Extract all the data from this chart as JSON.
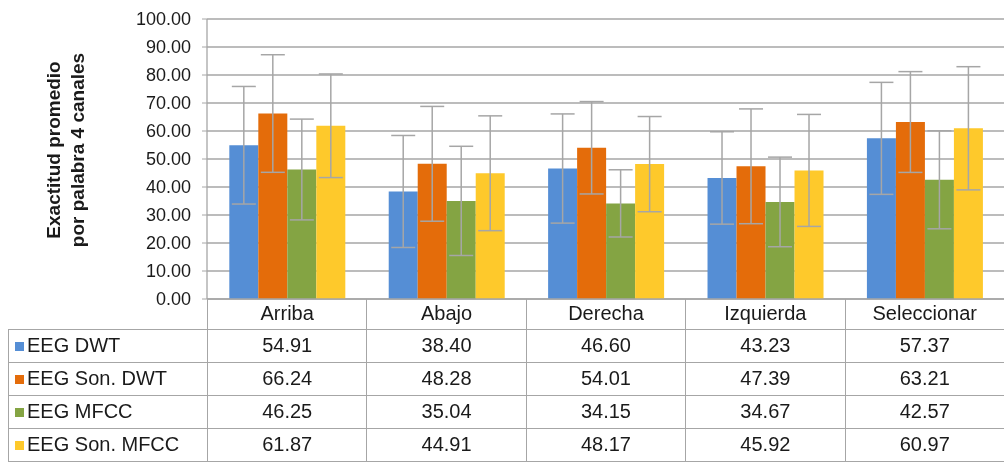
{
  "chart_data": {
    "type": "bar",
    "ylabel": "Exactitud promedio\npor palabra 4 canales",
    "categories": [
      "Arriba",
      "Abajo",
      "Derecha",
      "Izquierda",
      "Seleccionar"
    ],
    "series": [
      {
        "name": "EEG DWT",
        "color": "#558ed5",
        "values": [
          54.91,
          38.4,
          46.6,
          43.23,
          57.37
        ],
        "value_labels": [
          "54.91",
          "38.40",
          "46.60",
          "43.23",
          "57.37"
        ],
        "errors": [
          21,
          20,
          19.5,
          16.5,
          20
        ]
      },
      {
        "name": "EEG Son. DWT",
        "color": "#e46c0a",
        "values": [
          66.24,
          48.28,
          54.01,
          47.39,
          63.21
        ],
        "value_labels": [
          "66.24",
          "48.28",
          "54.01",
          "47.39",
          "63.21"
        ],
        "errors": [
          21,
          20.5,
          16.5,
          20.5,
          18
        ]
      },
      {
        "name": "EEG MFCC",
        "color": "#84a443",
        "values": [
          46.25,
          35.04,
          34.15,
          34.67,
          42.57
        ],
        "value_labels": [
          "46.25",
          "35.04",
          "34.15",
          "34.67",
          "42.57"
        ],
        "errors": [
          18,
          19.5,
          12,
          16,
          17.5
        ]
      },
      {
        "name": "EEG Son. MFCC",
        "color": "#fec92b",
        "values": [
          61.87,
          44.91,
          48.17,
          45.92,
          60.97
        ],
        "value_labels": [
          "61.87",
          "44.91",
          "48.17",
          "45.92",
          "60.97"
        ],
        "errors": [
          18.5,
          20.5,
          17,
          20,
          22
        ]
      }
    ],
    "ylim": [
      0,
      100
    ],
    "yticks": [
      {
        "value": 0,
        "label": "0.00"
      },
      {
        "value": 10,
        "label": "10.00"
      },
      {
        "value": 20,
        "label": "20.00"
      },
      {
        "value": 30,
        "label": "30.00"
      },
      {
        "value": 40,
        "label": "40.00"
      },
      {
        "value": 50,
        "label": "50.00"
      },
      {
        "value": 60,
        "label": "60.00"
      },
      {
        "value": 70,
        "label": "70.00"
      },
      {
        "value": 80,
        "label": "80.00"
      },
      {
        "value": 90,
        "label": "90.00"
      },
      {
        "value": 100,
        "label": "100.00"
      }
    ],
    "grid": "y",
    "legend": "bottom"
  }
}
